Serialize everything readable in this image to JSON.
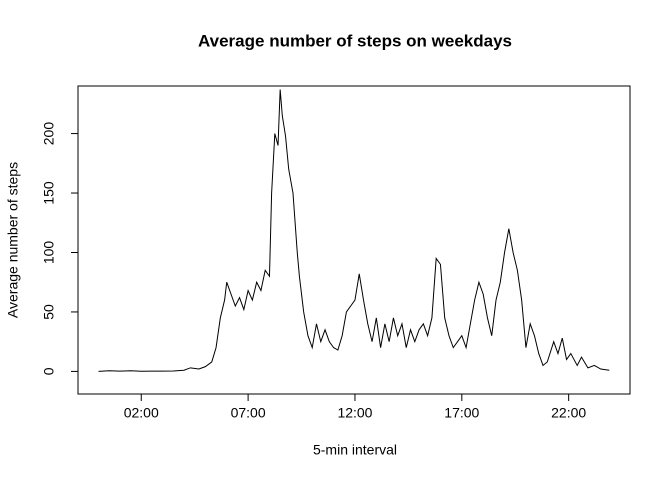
{
  "chart_data": {
    "type": "line",
    "title": "Average number of steps on weekdays",
    "xlabel": "5-min interval",
    "ylabel": "Average number of steps",
    "color": "#000000",
    "xlim": [
      -0.96,
      24.87
    ],
    "ylim": [
      -19,
      240
    ],
    "xticks": [
      {
        "value": 2,
        "label": "02:00"
      },
      {
        "value": 7,
        "label": "07:00"
      },
      {
        "value": 12,
        "label": "12:00"
      },
      {
        "value": 17,
        "label": "17:00"
      },
      {
        "value": 22,
        "label": "22:00"
      }
    ],
    "yticks": [
      0,
      50,
      100,
      150,
      200
    ],
    "x": [
      0,
      0.5,
      1,
      1.5,
      2,
      2.5,
      3,
      3.5,
      4,
      4.3,
      4.7,
      5,
      5.3,
      5.5,
      5.7,
      5.9,
      6,
      6.2,
      6.4,
      6.6,
      6.8,
      7,
      7.2,
      7.4,
      7.6,
      7.8,
      8,
      8.1,
      8.25,
      8.4,
      8.5,
      8.6,
      8.75,
      8.9,
      9.1,
      9.3,
      9.4,
      9.6,
      9.8,
      10,
      10.2,
      10.4,
      10.6,
      10.8,
      11,
      11.2,
      11.4,
      11.6,
      11.8,
      12,
      12.2,
      12.4,
      12.6,
      12.8,
      13,
      13.2,
      13.4,
      13.6,
      13.8,
      14,
      14.2,
      14.4,
      14.6,
      14.8,
      15,
      15.2,
      15.4,
      15.6,
      15.8,
      16,
      16.2,
      16.4,
      16.6,
      16.8,
      17,
      17.2,
      17.4,
      17.6,
      17.8,
      18,
      18.2,
      18.4,
      18.6,
      18.8,
      19,
      19.2,
      19.4,
      19.6,
      19.8,
      20,
      20.2,
      20.4,
      20.6,
      20.8,
      21,
      21.3,
      21.5,
      21.7,
      21.9,
      22.1,
      22.4,
      22.6,
      22.9,
      23.2,
      23.5,
      23.9
    ],
    "values": [
      0,
      0.5,
      0.2,
      0.5,
      0.1,
      0.2,
      0.2,
      0.3,
      1,
      3,
      2,
      4,
      8,
      20,
      45,
      60,
      75,
      65,
      55,
      62,
      52,
      68,
      60,
      75,
      68,
      85,
      80,
      150,
      200,
      190,
      237,
      215,
      198,
      170,
      150,
      100,
      80,
      50,
      30,
      20,
      40,
      25,
      35,
      25,
      20,
      18,
      30,
      50,
      55,
      60,
      82,
      60,
      40,
      25,
      45,
      20,
      40,
      25,
      45,
      30,
      40,
      20,
      35,
      25,
      35,
      40,
      30,
      45,
      95,
      90,
      45,
      30,
      20,
      25,
      30,
      20,
      40,
      60,
      75,
      65,
      45,
      30,
      60,
      75,
      100,
      120,
      100,
      85,
      60,
      20,
      40,
      30,
      15,
      5,
      8,
      25,
      15,
      28,
      10,
      15,
      5,
      12,
      3,
      5,
      2,
      1
    ]
  }
}
